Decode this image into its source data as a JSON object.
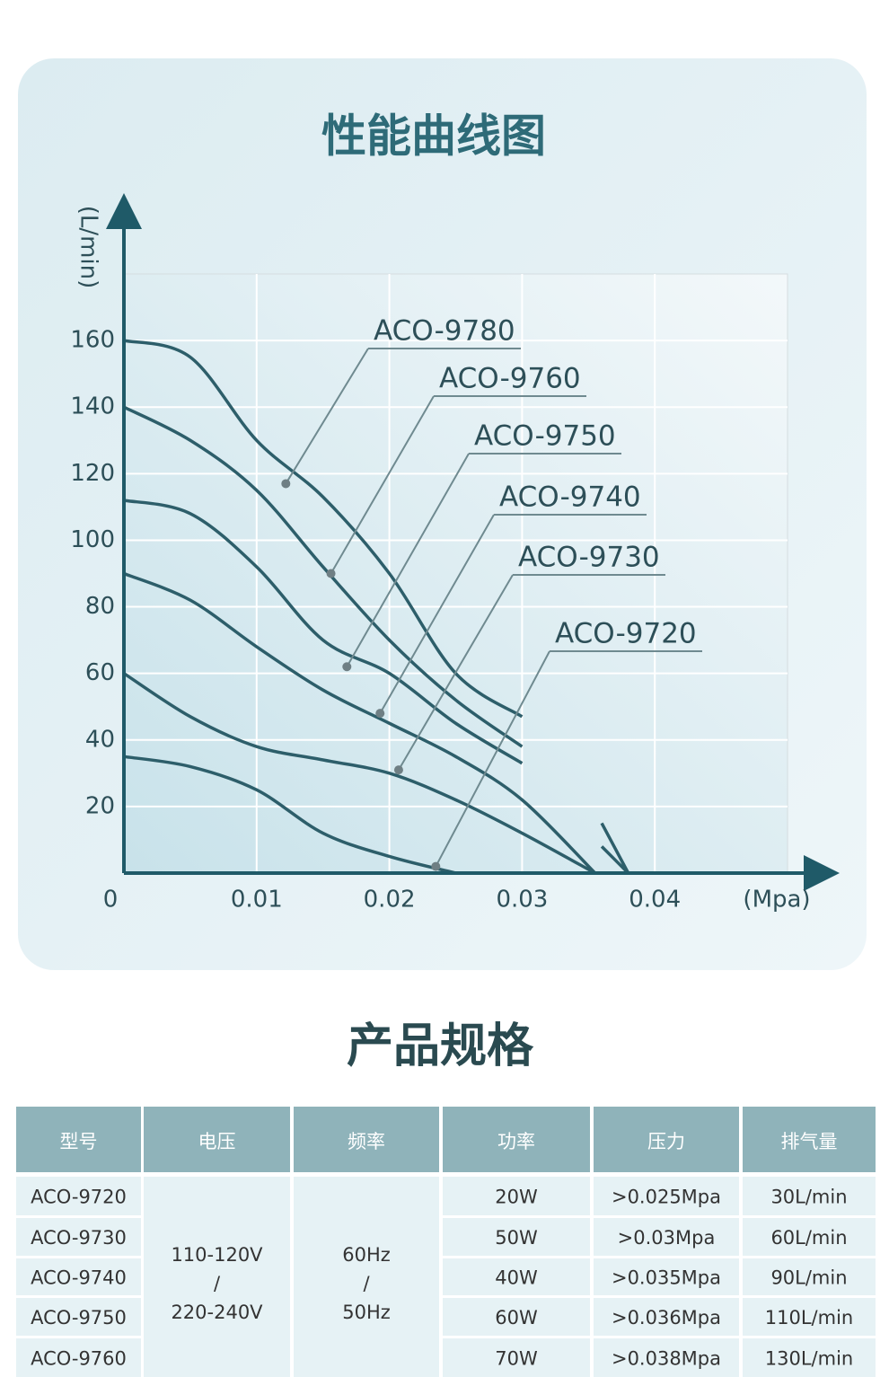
{
  "chart_data": {
    "type": "line",
    "title": "性能曲线图",
    "y_label": "(L/min)",
    "x_label": "(Mpa)",
    "x": [
      0,
      0.005,
      0.01,
      0.015,
      0.02,
      0.025,
      0.03,
      0.0355,
      0.036,
      0.038
    ],
    "series": [
      {
        "name": "ACO-9780",
        "color": "#2d5e6a",
        "values": [
          160,
          155,
          130,
          113,
          90,
          60,
          47,
          null,
          15,
          0
        ],
        "label_point": [
          0.0122,
          117
        ]
      },
      {
        "name": "ACO-9760",
        "color": "#2d5e6a",
        "values": [
          140,
          130,
          115,
          92,
          70,
          52,
          38,
          null,
          8,
          0
        ],
        "label_point": [
          0.0156,
          90
        ]
      },
      {
        "name": "ACO-9750",
        "color": "#2d5e6a",
        "values": [
          112,
          108,
          92,
          70,
          60,
          45,
          33,
          null,
          0,
          null
        ],
        "label_point": [
          0.0168,
          62
        ]
      },
      {
        "name": "ACO-9740",
        "color": "#2d5e6a",
        "values": [
          90,
          82,
          68,
          55,
          45,
          35,
          22,
          0,
          null,
          null
        ],
        "label_point": [
          0.0193,
          48
        ]
      },
      {
        "name": "ACO-9730",
        "color": "#2d5e6a",
        "values": [
          60,
          47,
          38,
          34,
          30,
          22,
          12,
          0,
          null,
          null
        ],
        "label_point": [
          0.0207,
          31
        ]
      },
      {
        "name": "ACO-9720",
        "color": "#2d5e6a",
        "values": [
          35,
          32,
          25,
          12,
          5,
          0,
          null,
          null,
          null,
          null
        ],
        "label_point": [
          0.0235,
          2
        ]
      }
    ],
    "xlim": [
      0,
      0.05
    ],
    "ylim": [
      0,
      180
    ],
    "xticks": [
      0,
      0.01,
      0.02,
      0.03,
      0.04
    ],
    "yticks": [
      20,
      40,
      60,
      80,
      100,
      120,
      140,
      160
    ],
    "grid": true
  },
  "table": {
    "title": "产品规格",
    "headers": [
      "型号",
      "电压",
      "频率",
      "功率",
      "压力",
      "排气量"
    ],
    "models": [
      "ACO-9720",
      "ACO-9730",
      "ACO-9740",
      "ACO-9750",
      "ACO-9760"
    ],
    "voltage": [
      "110-120V",
      "/",
      "220-240V"
    ],
    "frequency": [
      "60Hz",
      "/",
      "50Hz"
    ],
    "power": [
      "20W",
      "50W",
      "40W",
      "60W",
      "70W"
    ],
    "pressure": [
      ">0.025Mpa",
      ">0.03Mpa",
      ">0.035Mpa",
      ">0.036Mpa",
      ">0.038Mpa"
    ],
    "exhaust": [
      "30L/min",
      "60L/min",
      "90L/min",
      "110L/min",
      "130L/min"
    ]
  }
}
